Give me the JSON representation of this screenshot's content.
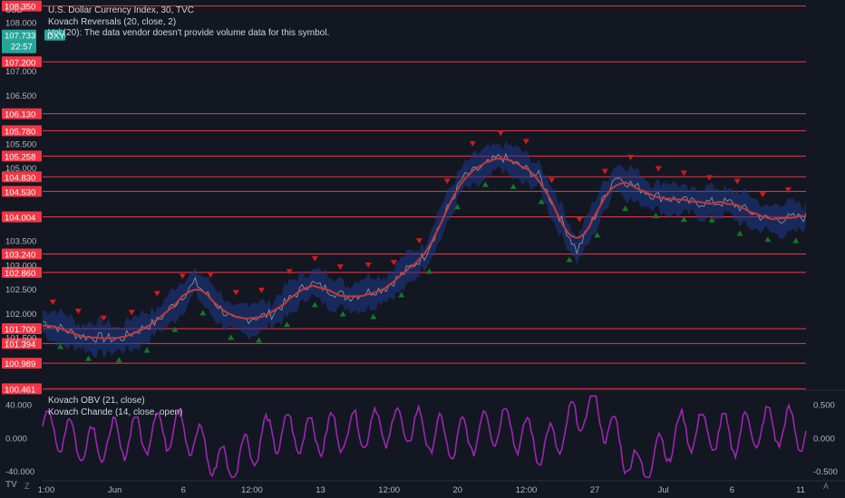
{
  "header": {
    "currency": "USD",
    "title": "U.S. Dollar Currency Index, 30, TVC",
    "indicator1": "Kovach Reversals (20, close, 2)",
    "indicator2": "Vol (20): The data vendor doesn't provide volume data for this symbol."
  },
  "price_badge": {
    "value": "107.733",
    "countdown": "22:57",
    "symbol": "DXY"
  },
  "lower_pane": {
    "indicator1": "Kovach OBV (21, close)",
    "indicator2": "Kovach Chande (14, close, open)"
  },
  "footer": {
    "logo": "TV",
    "z_button": "Z",
    "auto_button": "A"
  },
  "colors": {
    "background": "#131722",
    "level_line": "#f23645",
    "price_line": "#c13a3a",
    "band": "#1e3a8a",
    "close_line": "#9598a1",
    "up_marker": "#0f7a28",
    "down_marker": "#d01c1c",
    "badge": "#26a69a",
    "oscillator": "#9c27b0"
  },
  "chart_data": [
    {
      "type": "line",
      "subtitle": "U.S. Dollar Currency Index, 30, TVC",
      "ylabel": "USD",
      "ylim": [
        100.45,
        108.4
      ],
      "x_tick_labels": [
        "1:00",
        "Jun",
        "6",
        "12:00",
        "13",
        "12:00",
        "20",
        "12:00",
        "27",
        "Jul",
        "6",
        "11"
      ],
      "y_tick_labels": [
        "108.000",
        "107.000",
        "106.500",
        "105.500",
        "105.000",
        "103.500",
        "103.000",
        "102.500",
        "102.000",
        "101.500"
      ],
      "y_ticks": [
        108.0,
        107.0,
        106.5,
        105.5,
        105.0,
        103.5,
        103.0,
        102.5,
        102.0,
        101.5
      ],
      "horizontal_levels": [
        "108.350",
        "107.200",
        "106.130",
        "105.780",
        "105.258",
        "104.830",
        "104.530",
        "104.004",
        "103.240",
        "102.860",
        "101.700",
        "101.394",
        "100.989",
        "100.461"
      ],
      "last_price": 107.733,
      "x": [
        0,
        5,
        10,
        15,
        20,
        25,
        30,
        35,
        40,
        45,
        50,
        55,
        60,
        65,
        70,
        75,
        80,
        85,
        90,
        95,
        100
      ],
      "series": [
        {
          "values": [
            101.85,
            101.55,
            101.48,
            101.85,
            102.65,
            101.85,
            102.0,
            102.65,
            102.35,
            102.55,
            103.2,
            104.8,
            105.25,
            104.85,
            103.3,
            104.85,
            104.45,
            104.3,
            104.3,
            103.95,
            104.0
          ]
        }
      ],
      "up_markers_count": 27,
      "down_markers_count": 29,
      "grid": false
    },
    {
      "type": "line",
      "ylim": [
        -0.62,
        0.7
      ],
      "y_tick_labels_left": [
        "40.000",
        "0.000",
        "-40.000"
      ],
      "y_ticks_left": [
        40,
        0,
        -40
      ],
      "y_tick_labels_right": [
        "0.500",
        "0.000",
        "-0.500"
      ],
      "y_ticks_right": [
        0.5,
        0.0,
        -0.5
      ],
      "x": [
        0,
        6,
        12,
        18,
        24,
        30,
        36,
        42,
        48,
        54,
        60,
        66,
        72,
        78,
        84,
        90,
        96,
        100
      ],
      "series": [
        {
          "values": [
            0.2,
            -0.1,
            0.05,
            0.18,
            -0.45,
            0.1,
            0.05,
            0.15,
            0.2,
            -0.05,
            0.25,
            -0.15,
            0.55,
            -0.5,
            0.15,
            0.05,
            0.2,
            0.1
          ]
        }
      ]
    }
  ]
}
